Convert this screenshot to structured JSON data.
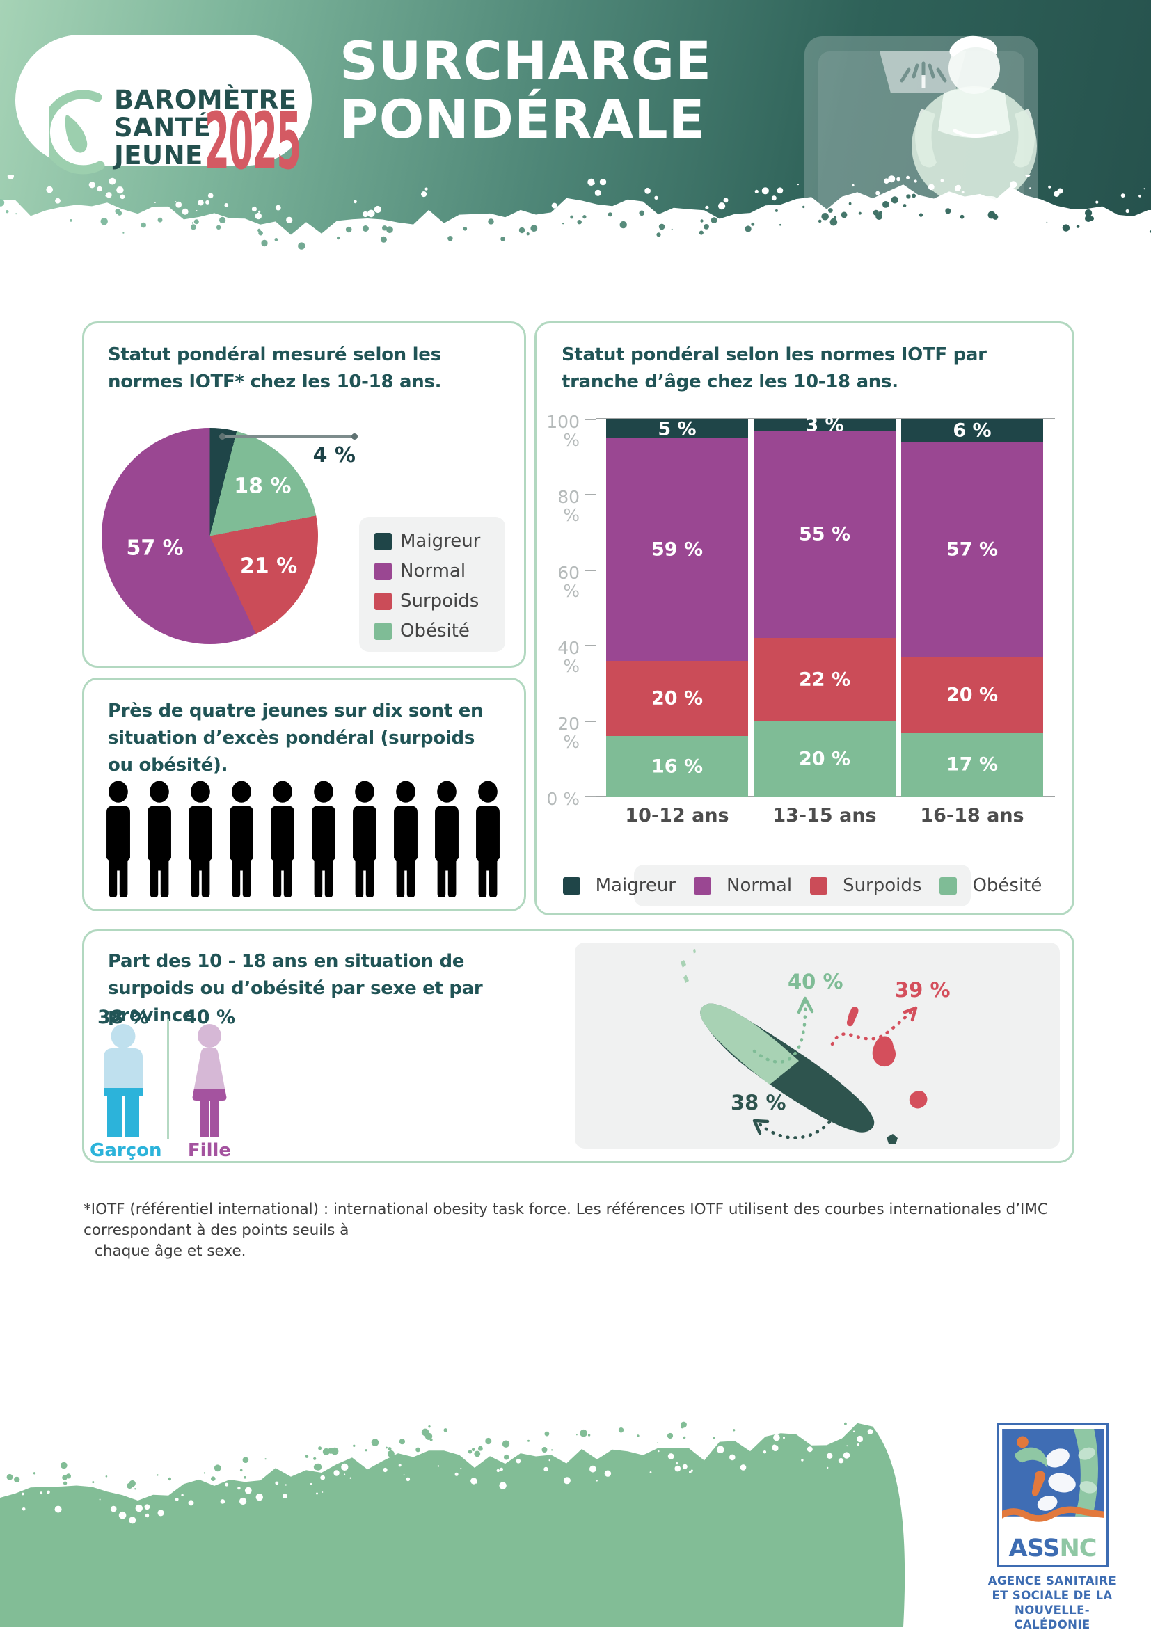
{
  "header": {
    "logo": {
      "line1": "BAROMÈTRE",
      "line2": "SANTÉ",
      "line3": "JEUNE",
      "year": "2025"
    },
    "title_line1": "SURCHARGE",
    "title_line2": "PONDÉRALE"
  },
  "colors": {
    "maigreur": "#1F4548",
    "normal": "#9A4792",
    "surpoids": "#CB4C58",
    "obesite": "#7FBC96",
    "boy_light": "#BFE0EE",
    "boy_dark": "#2CB3DA",
    "girl_light": "#D6B8D6",
    "girl_dark": "#A4539F",
    "province_nord": "#A8D2B4",
    "province_sud": "#2E544E",
    "iles_loyaute": "#D44F5C",
    "footer_green": "#82BD96"
  },
  "chart_data": [
    {
      "id": "pie_statut",
      "type": "pie",
      "title": "Statut pondéral mesuré selon les normes IOTF* chez les 10-18 ans.",
      "unit": "%",
      "legend_position": "right",
      "slices": [
        {
          "label": "Maigreur",
          "value": 4,
          "display": "4 %",
          "color": "#1F4548",
          "callout": true
        },
        {
          "label": "Obésité",
          "value": 18,
          "display": "18 %",
          "color": "#7FBC96"
        },
        {
          "label": "Surpoids",
          "value": 21,
          "display": "21 %",
          "color": "#CB4C58"
        },
        {
          "label": "Normal",
          "value": 57,
          "display": "57 %",
          "color": "#9A4792"
        }
      ],
      "legend": [
        "Maigreur",
        "Normal",
        "Surpoids",
        "Obésité"
      ]
    },
    {
      "id": "bar_age",
      "type": "stacked-bar",
      "title": "Statut pondéral selon les normes IOTF par tranche d’âge chez les 10-18 ans.",
      "categories": [
        "10-12 ans",
        "13-15 ans",
        "16-18 ans"
      ],
      "series": [
        {
          "name": "Obésité",
          "color": "#7FBC96",
          "values": [
            16,
            20,
            17
          ]
        },
        {
          "name": "Surpoids",
          "color": "#CB4C58",
          "values": [
            20,
            22,
            20
          ]
        },
        {
          "name": "Normal",
          "color": "#9A4792",
          "values": [
            59,
            55,
            57
          ]
        },
        {
          "name": "Maigreur",
          "color": "#1F4548",
          "values": [
            5,
            3,
            6
          ]
        }
      ],
      "unit": "%",
      "ylim": [
        0,
        100
      ],
      "y_ticks": [
        "0 %",
        "20 %",
        "40 %",
        "60 %",
        "80 %",
        "100 %"
      ],
      "grid": false,
      "legend_position": "bottom",
      "legend": [
        "Maigreur",
        "Normal",
        "Surpoids",
        "Obésité"
      ]
    },
    {
      "id": "picto_exces",
      "type": "pictogram",
      "text": "Près de quatre jeunes sur dix sont en situation d’excès pondéral (surpoids ou obésité).",
      "filled": 4,
      "total": 10
    },
    {
      "id": "sexe_province",
      "type": "map",
      "title": "Part des 10 - 18 ans en situation de surpoids ou d’obésité par sexe et par province",
      "sex": [
        {
          "label": "Garçon",
          "value": "38 %"
        },
        {
          "label": "Fille",
          "value": "40 %"
        }
      ],
      "provinces": [
        {
          "area": "nord",
          "value": "40 %",
          "color": "#7FBC96"
        },
        {
          "area": "iles-loyaute",
          "value": "39 %",
          "color": "#D44F5C"
        },
        {
          "area": "sud",
          "value": "38 %",
          "color": "#2E544E"
        }
      ]
    }
  ],
  "footnote": {
    "line1": "*IOTF (référentiel international) : international obesity task force. Les références IOTF utilisent des courbes internationales d’IMC correspondant à des points seuils à",
    "line2": "chaque âge et sexe."
  },
  "footer_logo": {
    "brand_blue": "ASS",
    "brand_green": "NC",
    "line1": "AGENCE SANITAIRE",
    "line2": "ET SOCIALE DE LA",
    "line3": "NOUVELLE-CALÉDONIE"
  }
}
